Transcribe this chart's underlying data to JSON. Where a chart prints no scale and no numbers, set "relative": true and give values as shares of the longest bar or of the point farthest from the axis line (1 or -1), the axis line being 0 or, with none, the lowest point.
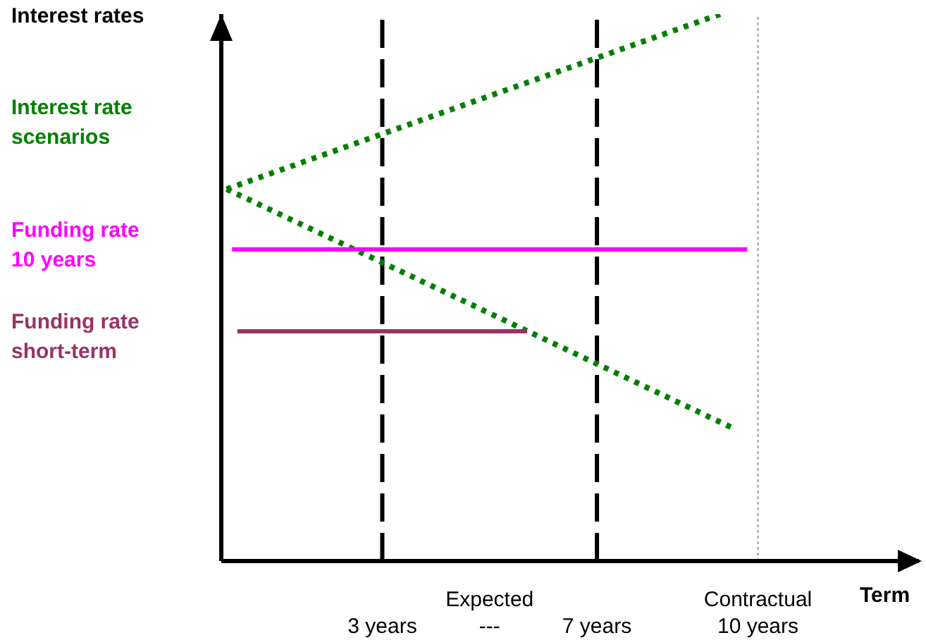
{
  "chart_data": {
    "type": "line",
    "relative": true,
    "ylabel": "Interest rates",
    "xlabel": "Term",
    "xlim": [
      0,
      13
    ],
    "xticks": [
      {
        "value": 3,
        "label": "3 years"
      },
      {
        "value": 5,
        "label": "Expected\n---"
      },
      {
        "value": 7,
        "label": "7 years"
      },
      {
        "value": 10,
        "label": "Contractual\n10 years"
      }
    ],
    "legend": "left",
    "series": [
      {
        "name": "Interest rate scenarios",
        "color": "#008000",
        "line_style": "dotted",
        "x": [
          0.1,
          9.3
        ],
        "values": [
          0.68,
          1
        ]
      },
      {
        "color": "#008000",
        "line_style": "dotted",
        "x": [
          0.1,
          9.6
        ],
        "values": [
          0.68,
          0.24
        ]
      },
      {
        "name": "Funding rate 10 years",
        "color": "#ff00ff",
        "line_style": "solid",
        "x": [
          0.2,
          9.8
        ],
        "values": [
          0.57,
          0.57
        ]
      },
      {
        "name": "Funding rate short-term",
        "color": "#993366",
        "line_style": "solid",
        "x": [
          0.3,
          5.7
        ],
        "values": [
          0.42,
          0.42
        ]
      }
    ],
    "ref_lines": [
      {
        "axis": "x",
        "value": 3,
        "color": "#000000",
        "line_style": "dashed"
      },
      {
        "axis": "x",
        "value": 7,
        "color": "#000000",
        "line_style": "dashed"
      },
      {
        "axis": "x",
        "value": 10,
        "color": "#999999",
        "line_style": "dotted"
      }
    ]
  }
}
